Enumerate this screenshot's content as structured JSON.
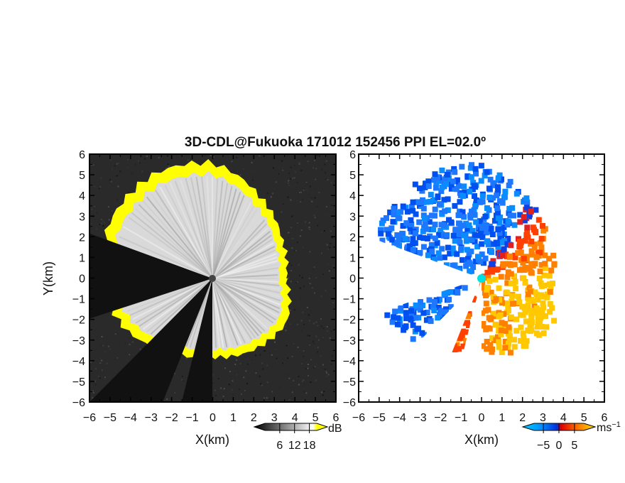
{
  "chart_data": [
    {
      "type": "heatmap",
      "panel": "left",
      "title": "3D-CDL@Fukuoka 171012 152456 PPI EL=02.0º",
      "xlabel": "X(km)",
      "ylabel": "Y(km)",
      "xlim": [
        -6,
        6
      ],
      "ylim": [
        -6,
        6
      ],
      "x_ticks": [
        "-6",
        "-5",
        "-4",
        "-3",
        "-2",
        "-1",
        "0",
        "1",
        "2",
        "3",
        "4",
        "5",
        "6"
      ],
      "y_ticks": [
        "6",
        "5",
        "4",
        "3",
        "2",
        "1",
        "0",
        "-1",
        "-2",
        "-3",
        "-4",
        "-5",
        "-6"
      ],
      "colorbar": {
        "label": "dB",
        "ticks": [
          "6",
          "12",
          "18"
        ],
        "range": [
          0,
          21
        ],
        "colors": [
          "#000000",
          "#ffffff",
          "#ffff00"
        ]
      },
      "colors": {
        "background_noise": "#2a2a2a",
        "saturated": "#ffff00",
        "echo_core": "#e6e6e6",
        "echo_edge": "#8a8a8a"
      },
      "echo_extent_km": [
        3.6,
        3.9,
        4.6,
        5.6,
        5.8,
        5.7,
        5.4,
        4.9,
        4.1,
        3.8,
        4.0,
        4.2
      ],
      "blocked_sectors_deg": [
        [
          -135,
          -112
        ],
        [
          -104,
          -90
        ],
        [
          160,
          198
        ]
      ]
    },
    {
      "type": "heatmap",
      "panel": "right",
      "xlabel": "X(km)",
      "xlim": [
        -6,
        6
      ],
      "ylim": [
        -6,
        6
      ],
      "x_ticks": [
        "-6",
        "-5",
        "-4",
        "-3",
        "-2",
        "-1",
        "0",
        "1",
        "2",
        "3",
        "4",
        "5",
        "6"
      ],
      "y_ticks": [
        "6",
        "5",
        "4",
        "3",
        "2",
        "1",
        "0",
        "-1",
        "-2",
        "-3",
        "-4",
        "-5",
        "-6"
      ],
      "colorbar": {
        "label": "ms",
        "label_exp": "−1",
        "ticks": [
          "-5",
          "0",
          "5"
        ],
        "range": [
          -8,
          8
        ],
        "colors": [
          "#00c8ff",
          "#0040ff",
          "#ff3000",
          "#ffd000"
        ]
      },
      "colors": {
        "origin_marker": "#00e0e0",
        "toward": "#1060f0",
        "away": "#ff6000"
      },
      "wind_direction": "blue NW/W, red-orange SE/E"
    }
  ]
}
